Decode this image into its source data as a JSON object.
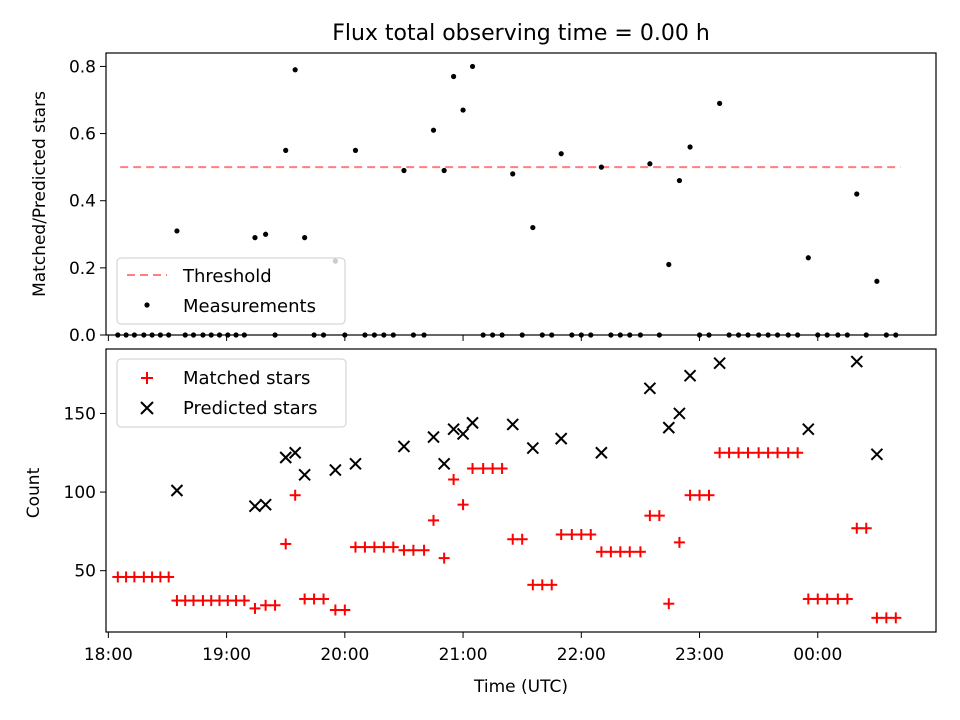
{
  "figure": {
    "title": "Flux total observing time = 0.00 h",
    "xlabel": "Time (UTC)",
    "x_ticks": [
      "18:00",
      "19:00",
      "20:00",
      "21:00",
      "22:00",
      "23:00",
      "00:00"
    ]
  },
  "chart_data": [
    {
      "type": "scatter",
      "ylabel": "Matched/Predicted stars",
      "xlim": [
        17.98,
        25.0
      ],
      "ylim": [
        0,
        0.84
      ],
      "y_ticks": [
        "0.0",
        "0.2",
        "0.4",
        "0.6",
        "0.8"
      ],
      "legend_placement": "lower-left",
      "threshold": {
        "name": "Threshold",
        "value": 0.5,
        "x_range": [
          18.1,
          24.7
        ],
        "color": "#ff7f7f"
      },
      "series": [
        {
          "name": "Measurements",
          "color": "#000000",
          "points": [
            [
              18.08,
              0.0
            ],
            [
              18.15,
              0.0
            ],
            [
              18.22,
              0.0
            ],
            [
              18.3,
              0.0
            ],
            [
              18.37,
              0.0
            ],
            [
              18.44,
              0.0
            ],
            [
              18.51,
              0.0
            ],
            [
              18.58,
              0.31
            ],
            [
              18.65,
              0.0
            ],
            [
              18.72,
              0.0
            ],
            [
              18.8,
              0.0
            ],
            [
              18.87,
              0.0
            ],
            [
              18.94,
              0.0
            ],
            [
              19.01,
              0.0
            ],
            [
              19.08,
              0.0
            ],
            [
              19.15,
              0.0
            ],
            [
              19.24,
              0.29
            ],
            [
              19.33,
              0.3
            ],
            [
              19.41,
              0.0
            ],
            [
              19.5,
              0.55
            ],
            [
              19.58,
              0.79
            ],
            [
              19.66,
              0.29
            ],
            [
              19.74,
              0.0
            ],
            [
              19.82,
              0.0
            ],
            [
              19.92,
              0.22
            ],
            [
              20.0,
              0.0
            ],
            [
              20.09,
              0.55
            ],
            [
              20.17,
              0.0
            ],
            [
              20.25,
              0.0
            ],
            [
              20.33,
              0.0
            ],
            [
              20.41,
              0.0
            ],
            [
              20.5,
              0.49
            ],
            [
              20.58,
              0.0
            ],
            [
              20.67,
              0.0
            ],
            [
              20.75,
              0.61
            ],
            [
              20.84,
              0.49
            ],
            [
              20.92,
              0.77
            ],
            [
              21.0,
              0.67
            ],
            [
              21.08,
              0.8
            ],
            [
              21.17,
              0.0
            ],
            [
              21.25,
              0.0
            ],
            [
              21.33,
              0.0
            ],
            [
              21.42,
              0.48
            ],
            [
              21.5,
              0.0
            ],
            [
              21.59,
              0.32
            ],
            [
              21.67,
              0.0
            ],
            [
              21.75,
              0.0
            ],
            [
              21.83,
              0.54
            ],
            [
              21.92,
              0.0
            ],
            [
              22.0,
              0.0
            ],
            [
              22.08,
              0.0
            ],
            [
              22.17,
              0.5
            ],
            [
              22.25,
              0.0
            ],
            [
              22.33,
              0.0
            ],
            [
              22.41,
              0.0
            ],
            [
              22.5,
              0.0
            ],
            [
              22.58,
              0.51
            ],
            [
              22.66,
              0.0
            ],
            [
              22.74,
              0.21
            ],
            [
              22.83,
              0.46
            ],
            [
              22.92,
              0.56
            ],
            [
              23.0,
              0.0
            ],
            [
              23.08,
              0.0
            ],
            [
              23.17,
              0.69
            ],
            [
              23.25,
              0.0
            ],
            [
              23.33,
              0.0
            ],
            [
              23.41,
              0.0
            ],
            [
              23.5,
              0.0
            ],
            [
              23.58,
              0.0
            ],
            [
              23.66,
              0.0
            ],
            [
              23.75,
              0.0
            ],
            [
              23.83,
              0.0
            ],
            [
              23.92,
              0.23
            ],
            [
              24.0,
              0.0
            ],
            [
              24.08,
              0.0
            ],
            [
              24.17,
              0.0
            ],
            [
              24.25,
              0.0
            ],
            [
              24.33,
              0.42
            ],
            [
              24.41,
              0.0
            ],
            [
              24.5,
              0.16
            ],
            [
              24.58,
              0.0
            ],
            [
              24.66,
              0.0
            ]
          ]
        }
      ]
    },
    {
      "type": "scatter",
      "ylabel": "Count",
      "xlim": [
        17.98,
        25.0
      ],
      "ylim": [
        11,
        191
      ],
      "y_ticks": [
        "50",
        "100",
        "150"
      ],
      "legend_placement": "upper-left",
      "series": [
        {
          "name": "Matched stars",
          "marker": "plus",
          "color": "#ff0000",
          "points": [
            [
              18.08,
              46
            ],
            [
              18.15,
              46
            ],
            [
              18.22,
              46
            ],
            [
              18.3,
              46
            ],
            [
              18.37,
              46
            ],
            [
              18.44,
              46
            ],
            [
              18.51,
              46
            ],
            [
              18.58,
              31
            ],
            [
              18.65,
              31
            ],
            [
              18.72,
              31
            ],
            [
              18.8,
              31
            ],
            [
              18.87,
              31
            ],
            [
              18.94,
              31
            ],
            [
              19.01,
              31
            ],
            [
              19.08,
              31
            ],
            [
              19.15,
              31
            ],
            [
              19.24,
              26
            ],
            [
              19.33,
              28
            ],
            [
              19.41,
              28
            ],
            [
              19.5,
              67
            ],
            [
              19.58,
              98
            ],
            [
              19.66,
              32
            ],
            [
              19.74,
              32
            ],
            [
              19.82,
              32
            ],
            [
              19.92,
              25
            ],
            [
              20.0,
              25
            ],
            [
              20.09,
              65
            ],
            [
              20.17,
              65
            ],
            [
              20.25,
              65
            ],
            [
              20.33,
              65
            ],
            [
              20.41,
              65
            ],
            [
              20.5,
              63
            ],
            [
              20.58,
              63
            ],
            [
              20.67,
              63
            ],
            [
              20.75,
              82
            ],
            [
              20.84,
              58
            ],
            [
              20.92,
              108
            ],
            [
              21.0,
              92
            ],
            [
              21.08,
              115
            ],
            [
              21.17,
              115
            ],
            [
              21.25,
              115
            ],
            [
              21.33,
              115
            ],
            [
              21.42,
              70
            ],
            [
              21.5,
              70
            ],
            [
              21.59,
              41
            ],
            [
              21.67,
              41
            ],
            [
              21.75,
              41
            ],
            [
              21.83,
              73
            ],
            [
              21.92,
              73
            ],
            [
              22.0,
              73
            ],
            [
              22.08,
              73
            ],
            [
              22.17,
              62
            ],
            [
              22.25,
              62
            ],
            [
              22.33,
              62
            ],
            [
              22.41,
              62
            ],
            [
              22.5,
              62
            ],
            [
              22.58,
              85
            ],
            [
              22.66,
              85
            ],
            [
              22.74,
              29
            ],
            [
              22.83,
              68
            ],
            [
              22.92,
              98
            ],
            [
              23.0,
              98
            ],
            [
              23.08,
              98
            ],
            [
              23.17,
              125
            ],
            [
              23.25,
              125
            ],
            [
              23.33,
              125
            ],
            [
              23.41,
              125
            ],
            [
              23.5,
              125
            ],
            [
              23.58,
              125
            ],
            [
              23.66,
              125
            ],
            [
              23.75,
              125
            ],
            [
              23.83,
              125
            ],
            [
              23.92,
              32
            ],
            [
              24.0,
              32
            ],
            [
              24.08,
              32
            ],
            [
              24.17,
              32
            ],
            [
              24.25,
              32
            ],
            [
              24.33,
              77
            ],
            [
              24.41,
              77
            ],
            [
              24.5,
              20
            ],
            [
              24.58,
              20
            ],
            [
              24.66,
              20
            ]
          ]
        },
        {
          "name": "Predicted stars",
          "marker": "x",
          "color": "#000000",
          "points": [
            [
              18.58,
              101
            ],
            [
              19.24,
              91
            ],
            [
              19.33,
              92
            ],
            [
              19.5,
              122
            ],
            [
              19.58,
              125
            ],
            [
              19.66,
              111
            ],
            [
              19.92,
              114
            ],
            [
              20.09,
              118
            ],
            [
              20.5,
              129
            ],
            [
              20.75,
              135
            ],
            [
              20.84,
              118
            ],
            [
              20.92,
              140
            ],
            [
              21.0,
              137
            ],
            [
              21.08,
              144
            ],
            [
              21.42,
              143
            ],
            [
              21.59,
              128
            ],
            [
              21.83,
              134
            ],
            [
              22.17,
              125
            ],
            [
              22.58,
              166
            ],
            [
              22.74,
              141
            ],
            [
              22.83,
              150
            ],
            [
              22.92,
              174
            ],
            [
              23.17,
              182
            ],
            [
              23.92,
              140
            ],
            [
              24.33,
              183
            ],
            [
              24.5,
              124
            ]
          ]
        }
      ]
    }
  ]
}
